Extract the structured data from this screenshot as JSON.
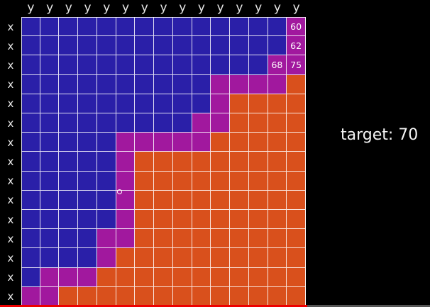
{
  "column_label": "y",
  "row_label": "x",
  "columns": 15,
  "rows": 15,
  "colors": {
    "blue": "#2a1fa8",
    "magenta": "#a1189e",
    "orange": "#d9501c"
  },
  "grid_rows": [
    "BBBBBBBBBBBBBBM",
    "BBBBBBBBBBBBBBM",
    "BBBBBBBBBBBBBMM",
    "BBBBBBBBBBMMMMO",
    "BBBBBBBBBBMOOOO",
    "BBBBBBBBBMMOOOO",
    "BBBBBMMMMMOOOOO",
    "BBBBBMOOOOOOOOO",
    "BBBBBMOOOOOOOOO",
    "BBBBBMOOOOOOOOO",
    "BBBBBMOOOOOOOOO",
    "BBBBMMOOOOOOOOO",
    "BBBBMOOOOOOOOOO",
    "BMMMOOOOOOOOOOO",
    "MMOOOOOOOOOOOOO"
  ],
  "cell_values": [
    {
      "row": 0,
      "col": 14,
      "text": "60"
    },
    {
      "row": 1,
      "col": 14,
      "text": "62"
    },
    {
      "row": 2,
      "col": 13,
      "text": "68"
    },
    {
      "row": 2,
      "col": 14,
      "text": "75"
    }
  ],
  "target_text": "target: 70"
}
